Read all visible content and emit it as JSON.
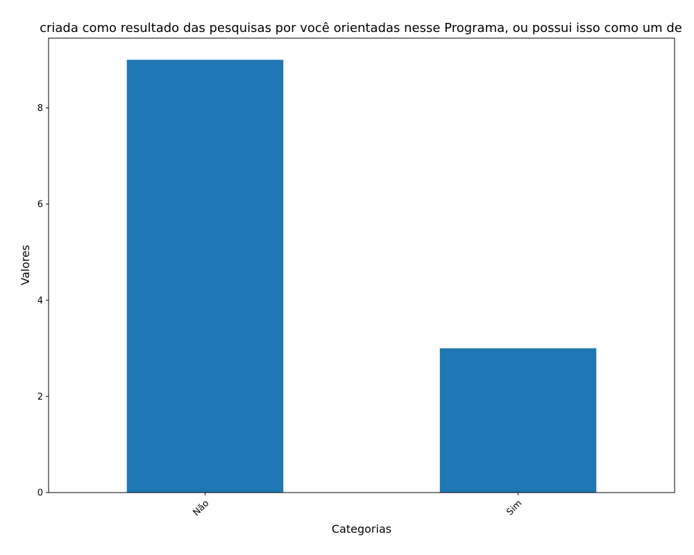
{
  "chart_data": {
    "type": "bar",
    "title": "criada como resultado das pesquisas por você orientadas nesse Programa, ou possui isso como um de",
    "xlabel": "Categorias",
    "ylabel": "Valores",
    "categories": [
      "Não",
      "Sim"
    ],
    "values": [
      9,
      3
    ],
    "ylim": [
      0,
      9.45
    ],
    "yticks": [
      0,
      2,
      4,
      6,
      8
    ],
    "grid": false,
    "bar_color": "#1f77b4"
  }
}
